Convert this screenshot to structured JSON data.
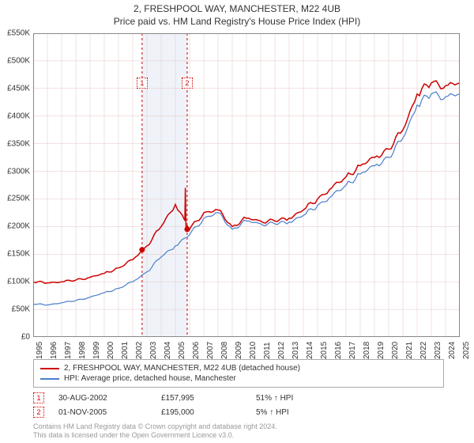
{
  "title_line1": "2, FRESHPOOL WAY, MANCHESTER, M22 4UB",
  "title_line2": "Price paid vs. HM Land Registry's House Price Index (HPI)",
  "chart": {
    "type": "line",
    "background_color": "#ffffff",
    "grid_color": "#e6c4c4",
    "axis_color": "#888888",
    "y_label_prefix": "£",
    "ylim": [
      0,
      550000
    ],
    "ytick_step": 50000,
    "ytick_labels": [
      "£0",
      "£50K",
      "£100K",
      "£150K",
      "£200K",
      "£250K",
      "£300K",
      "£350K",
      "£400K",
      "£450K",
      "£500K",
      "£550K"
    ],
    "x_years": [
      1995,
      1996,
      1997,
      1998,
      1999,
      2000,
      2001,
      2002,
      2003,
      2004,
      2005,
      2006,
      2007,
      2008,
      2009,
      2010,
      2011,
      2012,
      2013,
      2014,
      2015,
      2016,
      2017,
      2018,
      2019,
      2020,
      2021,
      2022,
      2023,
      2024,
      2025
    ],
    "series": [
      {
        "name": "property",
        "label": "2, FRESHPOOL WAY, MANCHESTER, M22 4UB (detached house)",
        "color": "#cc0000",
        "line_width": 1.5,
        "data_by_year": {
          "1995": 100000,
          "1996": 98000,
          "1997": 100000,
          "1998": 103000,
          "1999": 108000,
          "2000": 115000,
          "2001": 125000,
          "2002": 140000,
          "2003": 165000,
          "2004": 200000,
          "2005": 240000,
          "2006": 195000,
          "2007": 225000,
          "2008": 230000,
          "2009": 200000,
          "2010": 215000,
          "2011": 210000,
          "2012": 210000,
          "2013": 215000,
          "2014": 230000,
          "2015": 250000,
          "2016": 270000,
          "2017": 290000,
          "2018": 310000,
          "2019": 325000,
          "2020": 340000,
          "2021": 375000,
          "2022": 440000,
          "2023": 460000,
          "2024": 455000,
          "2025": 460000
        },
        "drop_after_2005_peak_to": 195000
      },
      {
        "name": "hpi",
        "label": "HPI: Average price, detached house, Manchester",
        "color": "#4a7ecb",
        "line_width": 1.2,
        "data_by_year": {
          "1995": 60000,
          "1996": 58000,
          "1997": 62000,
          "1998": 66000,
          "1999": 72000,
          "2000": 80000,
          "2001": 88000,
          "2002": 100000,
          "2003": 118000,
          "2004": 145000,
          "2005": 165000,
          "2006": 185000,
          "2007": 215000,
          "2008": 225000,
          "2009": 195000,
          "2010": 210000,
          "2011": 205000,
          "2012": 205000,
          "2013": 208000,
          "2014": 220000,
          "2015": 238000,
          "2016": 255000,
          "2017": 275000,
          "2018": 295000,
          "2019": 310000,
          "2020": 325000,
          "2021": 360000,
          "2022": 420000,
          "2023": 440000,
          "2024": 435000,
          "2025": 440000
        }
      }
    ],
    "transaction_markers": [
      {
        "id": "1",
        "year": 2002.66,
        "price": 157995,
        "vline_color": "#cc0000",
        "vline_dash": "3,3",
        "dot_color": "#cc0000"
      },
      {
        "id": "2",
        "year": 2005.83,
        "price": 195000,
        "vline_color": "#cc0000",
        "vline_dash": "3,3",
        "dot_color": "#cc0000"
      }
    ],
    "shade_band": {
      "from_year": 2002.66,
      "to_year": 2005.83,
      "fill": "#e8eef7",
      "opacity": 0.7
    },
    "inplot_marker_boxes": [
      {
        "id": "1",
        "x_year": 2002.66,
        "y_value": 460000
      },
      {
        "id": "2",
        "x_year": 2005.83,
        "y_value": 460000
      }
    ]
  },
  "legend": {
    "items": [
      {
        "color": "#cc0000",
        "label": "2, FRESHPOOL WAY, MANCHESTER, M22 4UB (detached house)"
      },
      {
        "color": "#4a7ecb",
        "label": "HPI: Average price, detached house, Manchester"
      }
    ]
  },
  "transactions_table": {
    "rows": [
      {
        "id": "1",
        "date": "30-AUG-2002",
        "price": "£157,995",
        "hpi_delta": "51% ↑ HPI"
      },
      {
        "id": "2",
        "date": "01-NOV-2005",
        "price": "£195,000",
        "hpi_delta": "5% ↑ HPI"
      }
    ]
  },
  "attribution_line1": "Contains HM Land Registry data © Crown copyright and database right 2024.",
  "attribution_line2": "This data is licensed under the Open Government Licence v3.0."
}
